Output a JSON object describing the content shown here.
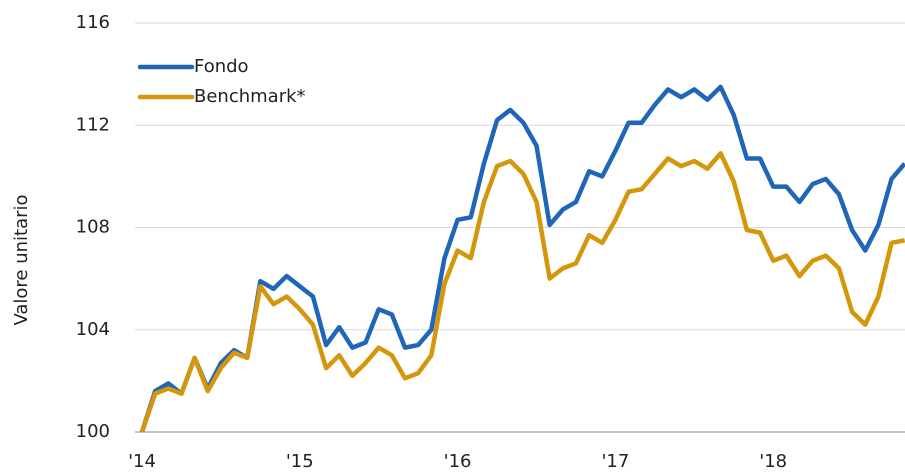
{
  "chart_data": {
    "type": "line",
    "ylabel": "Valore unitario",
    "categories": [
      "'14",
      null,
      null,
      null,
      null,
      null,
      null,
      null,
      null,
      null,
      null,
      null,
      "'15",
      null,
      null,
      null,
      null,
      null,
      null,
      null,
      null,
      null,
      null,
      null,
      "'16",
      null,
      null,
      null,
      null,
      null,
      null,
      null,
      null,
      null,
      null,
      null,
      "'17",
      null,
      null,
      null,
      null,
      null,
      null,
      null,
      null,
      null,
      null,
      null,
      "'18",
      null,
      null,
      null,
      null,
      null,
      null,
      null,
      null,
      null,
      null
    ],
    "series": [
      {
        "name": "Fondo",
        "color": "#2066b8",
        "values": [
          100,
          101.6,
          101.9,
          101.5,
          102.9,
          101.7,
          102.7,
          103.2,
          102.9,
          105.9,
          105.6,
          106.1,
          105.7,
          105.3,
          103.4,
          104.1,
          103.3,
          103.5,
          104.8,
          104.6,
          103.3,
          103.4,
          104.0,
          106.8,
          108.3,
          108.4,
          110.5,
          112.2,
          112.6,
          112.1,
          111.2,
          108.1,
          108.7,
          109.0,
          110.2,
          110.0,
          111.0,
          112.1,
          112.1,
          112.8,
          113.4,
          113.1,
          113.4,
          113.0,
          113.5,
          112.4,
          110.7,
          110.7,
          109.6,
          109.6,
          109.0,
          109.7,
          109.9,
          109.3,
          107.9,
          107.1,
          108.1,
          109.9,
          110.5
        ]
      },
      {
        "name": "Benchmark*",
        "color": "#d4960a",
        "values": [
          100,
          101.5,
          101.7,
          101.5,
          102.9,
          101.6,
          102.5,
          103.1,
          102.9,
          105.7,
          105.0,
          105.3,
          104.8,
          104.2,
          102.5,
          103.0,
          102.2,
          102.7,
          103.3,
          103.0,
          102.1,
          102.3,
          103.0,
          105.8,
          107.1,
          106.8,
          109.0,
          110.4,
          110.6,
          110.1,
          109.0,
          106.0,
          106.4,
          106.6,
          107.7,
          107.4,
          108.3,
          109.4,
          109.5,
          110.1,
          110.7,
          110.4,
          110.6,
          110.3,
          110.9,
          109.8,
          107.9,
          107.8,
          106.7,
          106.9,
          106.1,
          106.7,
          106.9,
          106.4,
          104.7,
          104.2,
          105.3,
          107.4,
          107.5
        ]
      }
    ],
    "ylim": [
      100,
      116
    ],
    "yticks": [
      100,
      104,
      108,
      112,
      116
    ],
    "grid": true,
    "legend": "top-left"
  }
}
